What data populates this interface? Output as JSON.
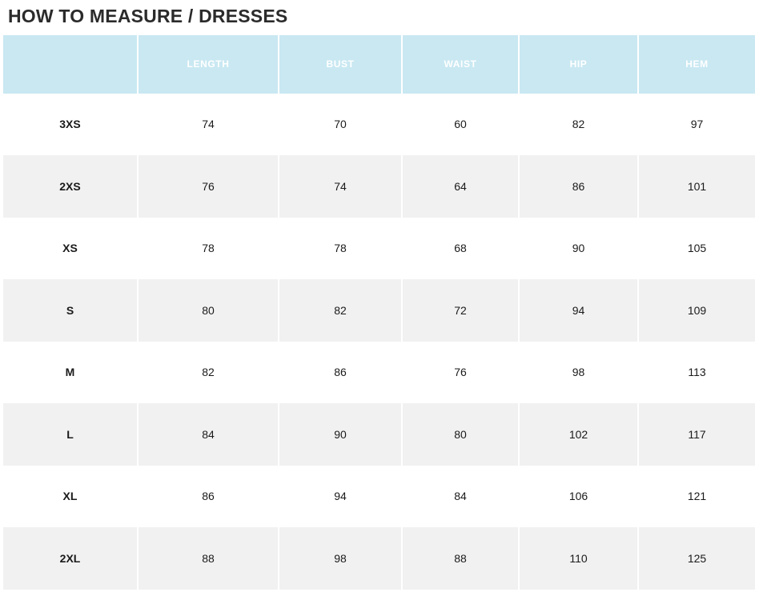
{
  "page": {
    "title": "HOW TO MEASURE / DRESSES"
  },
  "chart_data": {
    "type": "table",
    "title": "HOW TO MEASURE / DRESSES",
    "columns": [
      "",
      "LENGTH",
      "BUST",
      "WAIST",
      "HIP",
      "HEM"
    ],
    "rows": [
      {
        "size": "3XS",
        "values": [
          74,
          70,
          60,
          82,
          97
        ]
      },
      {
        "size": "2XS",
        "values": [
          76,
          74,
          64,
          86,
          101
        ]
      },
      {
        "size": "XS",
        "values": [
          78,
          78,
          68,
          90,
          105
        ]
      },
      {
        "size": "S",
        "values": [
          80,
          82,
          72,
          94,
          109
        ]
      },
      {
        "size": "M",
        "values": [
          82,
          86,
          76,
          98,
          113
        ]
      },
      {
        "size": "L",
        "values": [
          84,
          90,
          80,
          102,
          117
        ]
      },
      {
        "size": "XL",
        "values": [
          86,
          94,
          84,
          106,
          121
        ]
      },
      {
        "size": "2XL",
        "values": [
          88,
          98,
          88,
          110,
          125
        ]
      }
    ]
  },
  "colors": {
    "header_bg": "#c9e8f2",
    "header_text": "#ffffff",
    "row_bg": "#ffffff",
    "row_alt_bg": "#f1f1f1",
    "title_text": "#2b2b2b",
    "cell_text": "#1a1a1a"
  }
}
